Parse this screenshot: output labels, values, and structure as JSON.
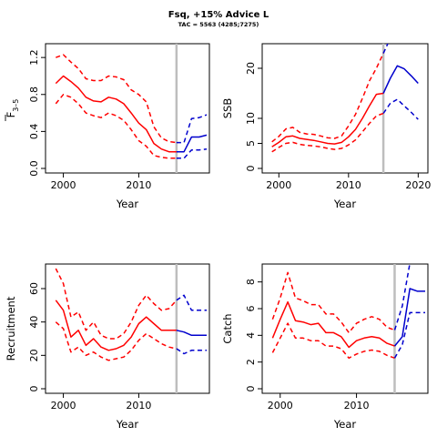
{
  "title": "Fsq, +15% Advice L",
  "subtitle": "TAC = 5563 (4285;7275)",
  "colors": {
    "historic": "#ff0000",
    "projection": "#0000cd",
    "reference_line": "#bebebe"
  },
  "reference_year": 2015,
  "chart_data": [
    {
      "type": "line",
      "ylabel_main": "F",
      "ylabel_sub": "3–5",
      "ylabel_overbar": true,
      "xlabel": "Year",
      "xlim": [
        1998,
        2019
      ],
      "ylim": [
        0,
        1.3
      ],
      "xticks": [
        "2000",
        "2010"
      ],
      "yticks": [
        "0.0",
        "0.4",
        "0.8",
        "1.2"
      ],
      "series": [
        {
          "role": "historic-median",
          "x": [
            1999,
            2000,
            2001,
            2002,
            2003,
            2004,
            2005,
            2006,
            2007,
            2008,
            2009,
            2010,
            2011,
            2012,
            2013,
            2014,
            2015
          ],
          "values": [
            0.92,
            1.0,
            0.94,
            0.87,
            0.77,
            0.73,
            0.72,
            0.77,
            0.75,
            0.7,
            0.6,
            0.49,
            0.42,
            0.27,
            0.21,
            0.18,
            0.18
          ]
        },
        {
          "role": "historic-upper",
          "x": [
            1999,
            2000,
            2001,
            2002,
            2003,
            2004,
            2005,
            2006,
            2007,
            2008,
            2009,
            2010,
            2011,
            2012,
            2013,
            2014,
            2015
          ],
          "values": [
            1.2,
            1.23,
            1.15,
            1.08,
            0.97,
            0.95,
            0.95,
            1.0,
            0.99,
            0.96,
            0.85,
            0.8,
            0.72,
            0.45,
            0.33,
            0.29,
            0.28
          ]
        },
        {
          "role": "historic-lower",
          "x": [
            1999,
            2000,
            2001,
            2002,
            2003,
            2004,
            2005,
            2006,
            2007,
            2008,
            2009,
            2010,
            2011,
            2012,
            2013,
            2014,
            2015
          ],
          "values": [
            0.7,
            0.8,
            0.77,
            0.7,
            0.6,
            0.57,
            0.55,
            0.6,
            0.57,
            0.52,
            0.42,
            0.3,
            0.24,
            0.14,
            0.12,
            0.11,
            0.11
          ]
        },
        {
          "role": "projection-median",
          "x": [
            2015,
            2016,
            2017,
            2018,
            2019
          ],
          "values": [
            0.18,
            0.18,
            0.34,
            0.34,
            0.36
          ]
        },
        {
          "role": "projection-upper",
          "x": [
            2015,
            2016,
            2017,
            2018,
            2019
          ],
          "values": [
            0.28,
            0.28,
            0.54,
            0.55,
            0.58
          ]
        },
        {
          "role": "projection-lower",
          "x": [
            2015,
            2016,
            2017,
            2018,
            2019
          ],
          "values": [
            0.11,
            0.11,
            0.2,
            0.2,
            0.21
          ]
        }
      ]
    },
    {
      "type": "line",
      "ylabel_main": "SSB",
      "xlabel": "Year",
      "xlim": [
        1998,
        2021
      ],
      "ylim": [
        0,
        24
      ],
      "xticks": [
        "2000",
        "2010",
        "2020"
      ],
      "yticks": [
        "0",
        "5",
        "10",
        "20"
      ],
      "series": [
        {
          "role": "historic-median",
          "x": [
            1999,
            2000,
            2001,
            2002,
            2003,
            2004,
            2005,
            2006,
            2007,
            2008,
            2009,
            2010,
            2011,
            2012,
            2013,
            2014,
            2015
          ],
          "values": [
            4.3,
            5.2,
            6.3,
            6.5,
            6.0,
            5.8,
            5.6,
            5.3,
            5.0,
            4.9,
            5.2,
            6.3,
            7.8,
            10.0,
            12.5,
            14.8,
            15.0
          ]
        },
        {
          "role": "historic-upper",
          "x": [
            1999,
            2000,
            2001,
            2002,
            2003,
            2004,
            2005,
            2006,
            2007,
            2008,
            2009,
            2010,
            2011,
            2012,
            2013,
            2014,
            2015
          ],
          "values": [
            5.3,
            6.4,
            7.9,
            8.2,
            7.2,
            6.9,
            6.8,
            6.5,
            6.1,
            6.0,
            6.5,
            8.5,
            10.8,
            14.0,
            17.5,
            20.0,
            23.0
          ]
        },
        {
          "role": "historic-lower",
          "x": [
            1999,
            2000,
            2001,
            2002,
            2003,
            2004,
            2005,
            2006,
            2007,
            2008,
            2009,
            2010,
            2011,
            2012,
            2013,
            2014,
            2015
          ],
          "values": [
            3.3,
            4.2,
            5.0,
            5.2,
            4.8,
            4.6,
            4.5,
            4.3,
            4.0,
            3.8,
            4.0,
            4.7,
            5.7,
            7.3,
            9.0,
            10.5,
            11.0
          ]
        },
        {
          "role": "projection-median",
          "x": [
            2015,
            2016,
            2017,
            2018,
            2019,
            2020
          ],
          "values": [
            15.0,
            18.0,
            20.5,
            19.9,
            18.5,
            17.0
          ]
        },
        {
          "role": "projection-upper",
          "x": [
            2015,
            2016
          ],
          "values": [
            23.0,
            26.0
          ]
        },
        {
          "role": "projection-lower",
          "x": [
            2015,
            2016,
            2017,
            2018,
            2019,
            2020
          ],
          "values": [
            11.0,
            13.0,
            13.8,
            12.5,
            11.2,
            9.8
          ]
        }
      ]
    },
    {
      "type": "line",
      "ylabel_main": "Recruitment",
      "xlabel": "Year",
      "xlim": [
        1998,
        2019
      ],
      "ylim": [
        0,
        72
      ],
      "xticks": [
        "2000",
        "2010"
      ],
      "yticks": [
        "0",
        "20",
        "40",
        "60"
      ],
      "series": [
        {
          "role": "historic-median",
          "x": [
            1999,
            2000,
            2001,
            2002,
            2003,
            2004,
            2005,
            2006,
            2007,
            2008,
            2009,
            2010,
            2011,
            2012,
            2013,
            2014,
            2015
          ],
          "values": [
            53,
            47,
            31,
            35,
            26,
            30,
            25,
            23,
            24,
            26,
            31,
            39,
            43,
            39,
            35,
            35,
            35
          ]
        },
        {
          "role": "historic-upper",
          "x": [
            1999,
            2000,
            2001,
            2002,
            2003,
            2004,
            2005,
            2006,
            2007,
            2008,
            2009,
            2010,
            2011,
            2012,
            2013,
            2014,
            2015
          ],
          "values": [
            72,
            63,
            43,
            46,
            35,
            40,
            32,
            30,
            30,
            33,
            40,
            50,
            56,
            51,
            47,
            48,
            53
          ]
        },
        {
          "role": "historic-lower",
          "x": [
            1999,
            2000,
            2001,
            2002,
            2003,
            2004,
            2005,
            2006,
            2007,
            2008,
            2009,
            2010,
            2011,
            2012,
            2013,
            2014,
            2015
          ],
          "values": [
            40,
            36,
            22,
            25,
            20,
            22,
            19,
            17,
            18,
            19,
            23,
            29,
            33,
            30,
            27,
            25,
            24
          ]
        },
        {
          "role": "projection-median",
          "x": [
            2015,
            2016,
            2017,
            2018,
            2019
          ],
          "values": [
            35,
            34,
            32,
            32,
            32
          ]
        },
        {
          "role": "projection-upper",
          "x": [
            2015,
            2016,
            2017,
            2018,
            2019
          ],
          "values": [
            53,
            56,
            47,
            47,
            47
          ]
        },
        {
          "role": "projection-lower",
          "x": [
            2015,
            2016,
            2017,
            2018,
            2019
          ],
          "values": [
            24,
            21,
            23,
            23,
            23
          ]
        }
      ]
    },
    {
      "type": "line",
      "ylabel_main": "Catch",
      "xlabel": "Year",
      "xlim": [
        1998,
        2019
      ],
      "ylim": [
        0,
        9
      ],
      "xticks": [
        "2000",
        "2010"
      ],
      "yticks": [
        "0",
        "2",
        "4",
        "6",
        "8"
      ],
      "series": [
        {
          "role": "historic-median",
          "x": [
            1999,
            2000,
            2001,
            2002,
            2003,
            2004,
            2005,
            2006,
            2007,
            2008,
            2009,
            2010,
            2011,
            2012,
            2013,
            2014,
            2015
          ],
          "values": [
            3.8,
            5.2,
            6.5,
            5.1,
            5.0,
            4.8,
            4.9,
            4.2,
            4.2,
            3.9,
            3.1,
            3.6,
            3.8,
            3.9,
            3.8,
            3.4,
            3.2
          ]
        },
        {
          "role": "historic-upper",
          "x": [
            1999,
            2000,
            2001,
            2002,
            2003,
            2004,
            2005,
            2006,
            2007,
            2008,
            2009,
            2010,
            2011,
            2012,
            2013,
            2014,
            2015
          ],
          "values": [
            5.2,
            6.8,
            8.7,
            6.8,
            6.6,
            6.3,
            6.3,
            5.6,
            5.6,
            5.0,
            4.2,
            4.9,
            5.2,
            5.4,
            5.2,
            4.6,
            4.4
          ]
        },
        {
          "role": "historic-lower",
          "x": [
            1999,
            2000,
            2001,
            2002,
            2003,
            2004,
            2005,
            2006,
            2007,
            2008,
            2009,
            2010,
            2011,
            2012,
            2013,
            2014,
            2015
          ],
          "values": [
            2.7,
            3.8,
            4.9,
            3.8,
            3.8,
            3.6,
            3.6,
            3.2,
            3.2,
            3.0,
            2.3,
            2.6,
            2.8,
            2.9,
            2.8,
            2.5,
            2.3
          ]
        },
        {
          "role": "projection-median",
          "x": [
            2015,
            2016,
            2017,
            2018,
            2019
          ],
          "values": [
            3.2,
            3.9,
            7.5,
            7.3,
            7.3
          ]
        },
        {
          "role": "projection-upper",
          "x": [
            2015,
            2016,
            2017
          ],
          "values": [
            4.4,
            6.2,
            9.4
          ]
        },
        {
          "role": "projection-lower",
          "x": [
            2015,
            2016,
            2017,
            2018,
            2019
          ],
          "values": [
            2.3,
            3.3,
            5.7,
            5.7,
            5.7
          ]
        }
      ]
    }
  ]
}
